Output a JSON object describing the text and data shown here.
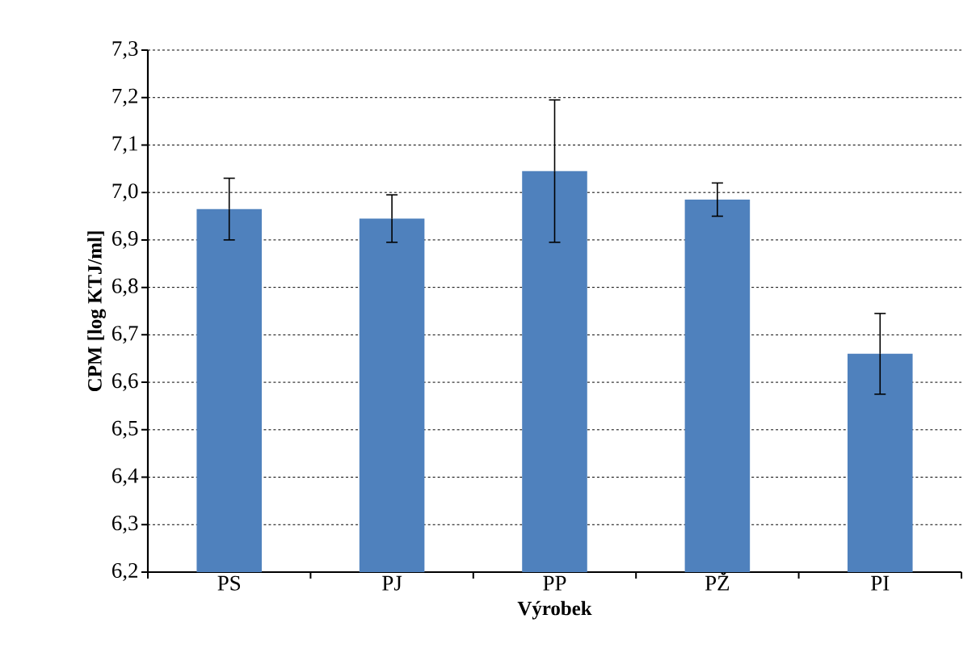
{
  "chart_data": {
    "type": "bar",
    "xlabel": "Výrobek",
    "ylabel": "CPM [log KTJ/ml]",
    "categories": [
      "PS",
      "PJ",
      "PP",
      "PŽ",
      "PI"
    ],
    "values": [
      6.965,
      6.945,
      7.045,
      6.985,
      6.66
    ],
    "errors": [
      0.065,
      0.05,
      0.15,
      0.035,
      0.085
    ],
    "color": "#4f81bd",
    "ylim": [
      6.2,
      7.3
    ],
    "yticks": [
      {
        "value": 6.2,
        "label": "6,2"
      },
      {
        "value": 6.3,
        "label": "6,3"
      },
      {
        "value": 6.4,
        "label": "6,4"
      },
      {
        "value": 6.5,
        "label": "6,5"
      },
      {
        "value": 6.6,
        "label": "6,6"
      },
      {
        "value": 6.7,
        "label": "6,7"
      },
      {
        "value": 6.8,
        "label": "6,8"
      },
      {
        "value": 6.9,
        "label": "6,9"
      },
      {
        "value": 7.0,
        "label": "7,0"
      },
      {
        "value": 7.1,
        "label": "7,1"
      },
      {
        "value": 7.2,
        "label": "7,2"
      },
      {
        "value": 7.3,
        "label": "7,3"
      }
    ],
    "grid": "y"
  }
}
